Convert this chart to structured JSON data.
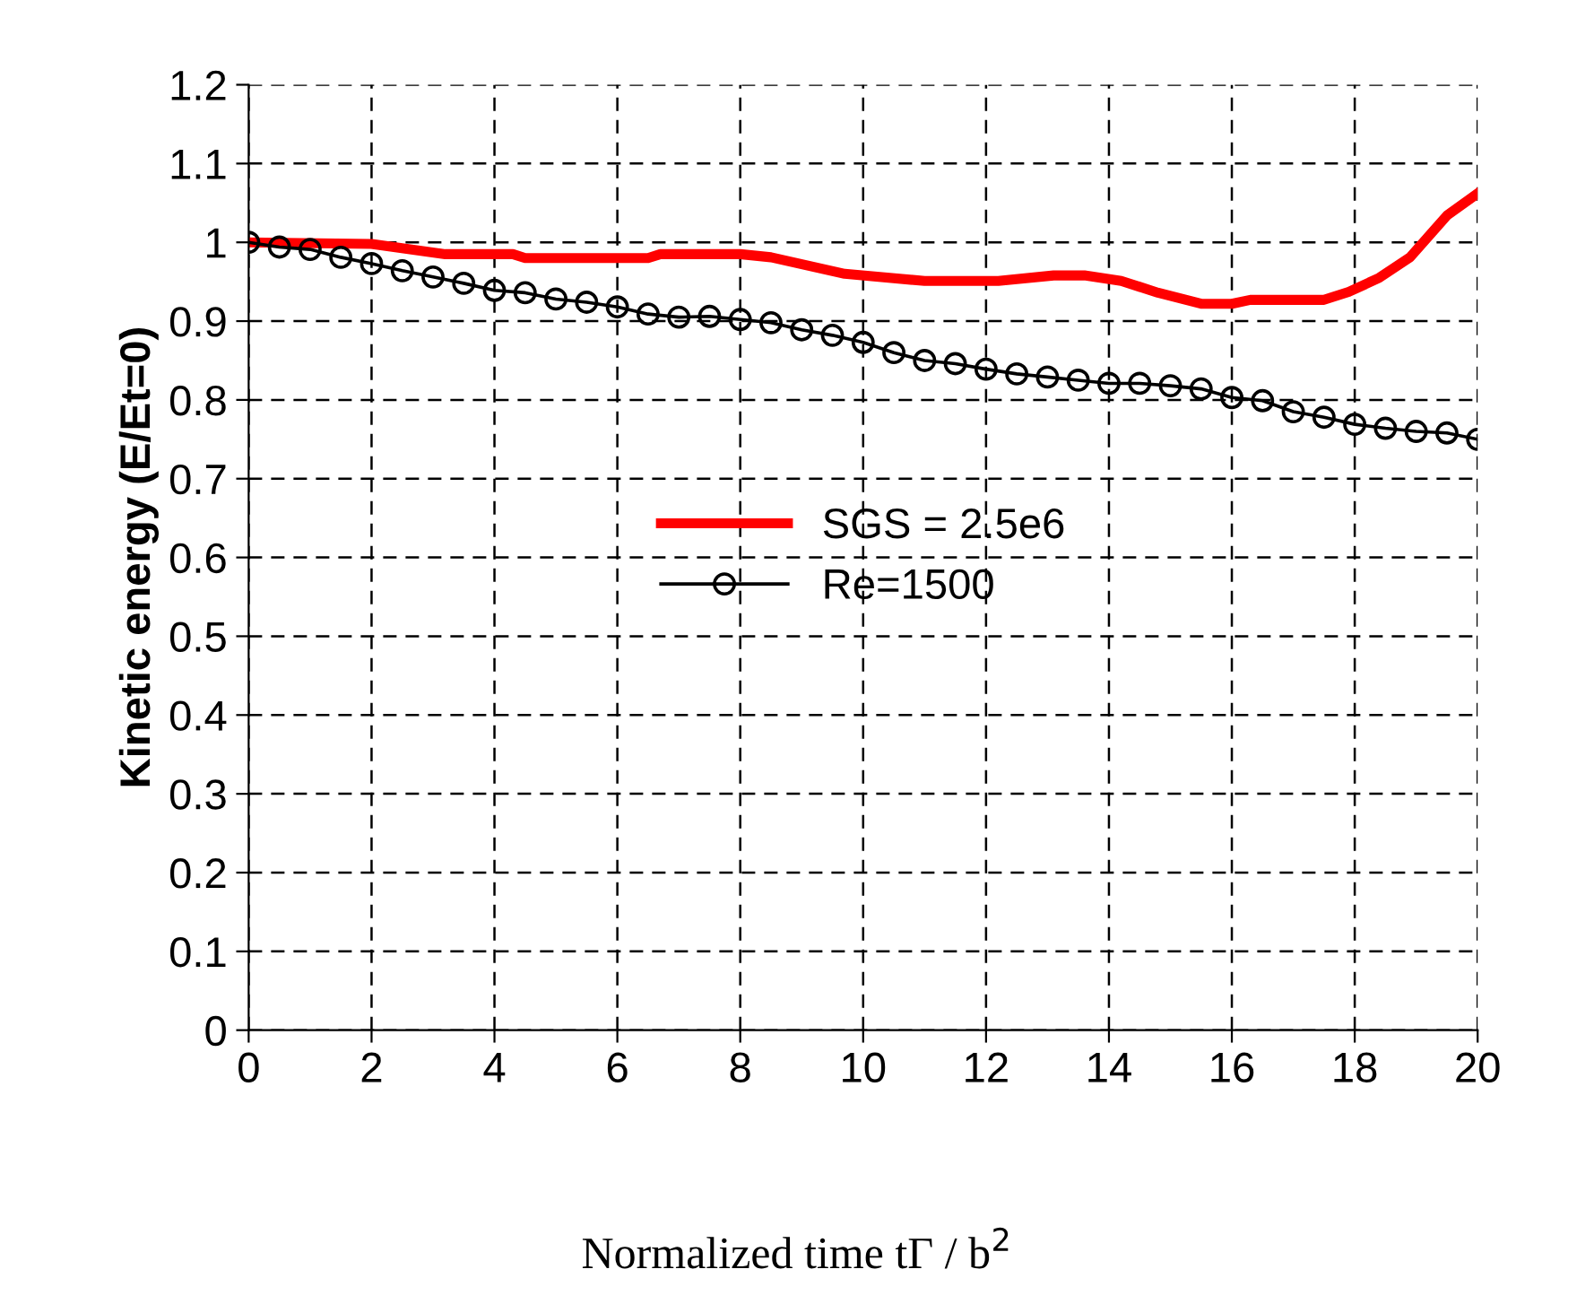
{
  "chart_data": {
    "type": "line",
    "xlabel": "Normalized time tΓ / b$^{2}$",
    "ylabel": "Kinetic energy (E/Et=0)",
    "xlim": [
      0,
      20
    ],
    "xticks": [
      0,
      2,
      4,
      6,
      8,
      10,
      12,
      14,
      16,
      18,
      20
    ],
    "ylim": [
      0,
      1.2
    ],
    "yticks": [
      0,
      0.1,
      0.2,
      0.3,
      0.4,
      0.5,
      0.6,
      0.7,
      0.8,
      0.9,
      1,
      1.1,
      1.2
    ],
    "grid": true,
    "legend": "center",
    "series": [
      {
        "name": "SGS = 2.5e6",
        "color": "#ff0000",
        "marker": "none",
        "line_style": "solid",
        "x": [
          0,
          2.0,
          3.2,
          4.3,
          4.5,
          6.5,
          6.7,
          8.0,
          8.5,
          9.7,
          11.0,
          12.2,
          13.1,
          13.6,
          14.2,
          14.8,
          15.5,
          16.0,
          16.3,
          17.5,
          17.9,
          18.4,
          18.9,
          19.5,
          20.0
        ],
        "values": [
          1.0,
          0.998,
          0.985,
          0.985,
          0.98,
          0.98,
          0.985,
          0.985,
          0.981,
          0.96,
          0.951,
          0.951,
          0.958,
          0.958,
          0.951,
          0.936,
          0.922,
          0.922,
          0.927,
          0.927,
          0.937,
          0.955,
          0.981,
          1.034,
          1.062
        ]
      },
      {
        "name": "Re=1500",
        "color": "#000000",
        "marker": "circle",
        "line_style": "solid",
        "x": [
          0,
          0.5,
          1,
          1.5,
          2,
          2.5,
          3,
          3.5,
          4,
          4.5,
          5,
          5.5,
          6,
          6.5,
          7,
          7.5,
          8,
          8.5,
          9,
          9.5,
          10,
          10.5,
          11,
          11.5,
          12,
          12.5,
          13,
          13.5,
          14,
          14.5,
          15,
          15.5,
          16,
          16.5,
          17,
          17.5,
          18,
          18.5,
          19,
          19.5,
          20
        ],
        "values": [
          1.0,
          0.994,
          0.991,
          0.981,
          0.973,
          0.964,
          0.956,
          0.948,
          0.939,
          0.936,
          0.928,
          0.924,
          0.918,
          0.909,
          0.905,
          0.906,
          0.902,
          0.898,
          0.889,
          0.882,
          0.873,
          0.86,
          0.85,
          0.846,
          0.839,
          0.833,
          0.829,
          0.825,
          0.821,
          0.821,
          0.818,
          0.814,
          0.803,
          0.799,
          0.785,
          0.778,
          0.769,
          0.764,
          0.76,
          0.758,
          0.75
        ]
      }
    ]
  }
}
